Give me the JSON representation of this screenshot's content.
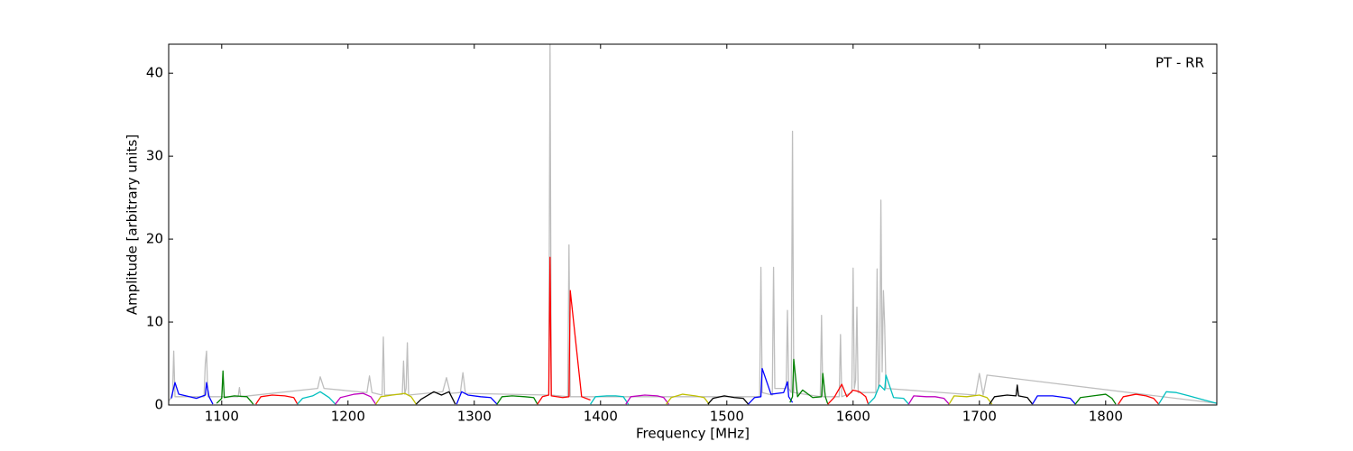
{
  "chart_data": {
    "type": "line",
    "annotation": "PT - RR",
    "xlabel": "Frequency [MHz]",
    "ylabel": "Amplitude [arbitrary units]",
    "xlim": [
      1058,
      1888
    ],
    "xticks": [
      1100,
      1200,
      1300,
      1400,
      1500,
      1600,
      1700,
      1800
    ],
    "ylim": [
      0,
      43.5
    ],
    "yticks": [
      0,
      10,
      20,
      30,
      40
    ],
    "series": [
      {
        "color": "#bebebe",
        "x": [
          1058,
          1061,
          1062,
          1063,
          1086,
          1087,
          1088,
          1089,
          1113,
          1114,
          1115,
          1176,
          1178,
          1181,
          1215,
          1217,
          1219,
          1227,
          1228,
          1229,
          1243,
          1244,
          1245,
          1246,
          1247,
          1248,
          1275,
          1278,
          1281,
          1289,
          1291,
          1293,
          1359,
          1360,
          1361,
          1374,
          1375,
          1376,
          1526,
          1527,
          1528,
          1536,
          1537,
          1538,
          1547,
          1548,
          1549,
          1551,
          1552,
          1553,
          1574,
          1575,
          1576,
          1589,
          1590,
          1591,
          1599,
          1600,
          1601,
          1602,
          1603,
          1604,
          1618,
          1619,
          1620,
          1621,
          1622,
          1623,
          1624,
          1625,
          1626,
          1697,
          1700,
          1703,
          1706,
          1888
        ],
        "values": [
          0.5,
          1,
          6.5,
          1,
          1,
          5,
          6.5,
          1,
          1,
          2.1,
          1,
          2,
          3.4,
          2,
          1.5,
          3.5,
          1.5,
          1.2,
          8.2,
          1.2,
          1.3,
          5.3,
          1.3,
          2,
          7.5,
          1.2,
          1.6,
          3.3,
          1.4,
          1.5,
          3.9,
          1.4,
          1.2,
          43.5,
          1.2,
          1,
          19.3,
          1,
          1,
          16.6,
          1.5,
          1.2,
          16.6,
          2,
          2,
          11.4,
          2,
          1.5,
          33,
          1.5,
          1,
          10.8,
          1,
          1,
          8.5,
          1,
          1.5,
          16.5,
          2,
          3,
          11.8,
          1.5,
          1.5,
          16.4,
          2,
          3,
          24.7,
          4,
          13.8,
          9.6,
          2,
          1.2,
          3.8,
          1.2,
          3.6,
          0.2
        ]
      },
      {
        "color": "#0000ff",
        "x": [
          1060,
          1063,
          1066,
          1080,
          1087,
          1088,
          1090,
          1093
        ],
        "values": [
          0.8,
          2.7,
          1.3,
          0.8,
          1.2,
          2.7,
          1,
          0.1
        ]
      },
      {
        "color": "#008000",
        "x": [
          1096,
          1100,
          1101,
          1102,
          1110,
          1120,
          1125
        ],
        "values": [
          0.2,
          0.8,
          4.1,
          0.9,
          1.1,
          1,
          0.1
        ]
      },
      {
        "color": "#ff0000",
        "x": [
          1127,
          1131,
          1140,
          1150,
          1157,
          1160
        ],
        "values": [
          0.1,
          1,
          1.2,
          1.1,
          0.9,
          0.1
        ]
      },
      {
        "color": "#00bfbf",
        "x": [
          1160,
          1164,
          1172,
          1178,
          1185,
          1190
        ],
        "values": [
          0.1,
          0.8,
          1.1,
          1.6,
          0.9,
          0.1
        ]
      },
      {
        "color": "#bf00bf",
        "x": [
          1190,
          1194,
          1205,
          1212,
          1218,
          1222
        ],
        "values": [
          0.1,
          0.9,
          1.3,
          1.4,
          1,
          0.1
        ]
      },
      {
        "color": "#bfbf00",
        "x": [
          1222,
          1226,
          1235,
          1245,
          1250,
          1254
        ],
        "values": [
          0.1,
          1,
          1.2,
          1.4,
          1,
          0.1
        ]
      },
      {
        "color": "#000000",
        "x": [
          1254,
          1258,
          1268,
          1274,
          1280,
          1285
        ],
        "values": [
          0.1,
          0.7,
          1.6,
          1.2,
          1.6,
          0.1
        ]
      },
      {
        "color": "#0000ff",
        "x": [
          1286,
          1290,
          1295,
          1305,
          1313,
          1318
        ],
        "values": [
          0.1,
          1.6,
          1.2,
          1,
          0.9,
          0.1
        ]
      },
      {
        "color": "#008000",
        "x": [
          1318,
          1322,
          1330,
          1340,
          1347,
          1350
        ],
        "values": [
          0.1,
          1,
          1.1,
          1,
          0.9,
          0.1
        ]
      },
      {
        "color": "#ff0000",
        "x": [
          1350,
          1354,
          1359,
          1360,
          1361,
          1370,
          1375,
          1376,
          1385,
          1392
        ],
        "values": [
          0.1,
          1,
          1.2,
          17.8,
          1.1,
          0.9,
          1,
          13.8,
          1,
          0.6
        ]
      },
      {
        "color": "#00bfbf",
        "x": [
          1392,
          1396,
          1405,
          1412,
          1418,
          1422
        ],
        "values": [
          0.1,
          1,
          1.1,
          1.1,
          1,
          0.1
        ]
      },
      {
        "color": "#bf00bf",
        "x": [
          1420,
          1424,
          1435,
          1445,
          1450,
          1454
        ],
        "values": [
          0.1,
          1,
          1.2,
          1.1,
          0.9,
          0.1
        ]
      },
      {
        "color": "#bfbf00",
        "x": [
          1452,
          1456,
          1465,
          1475,
          1482,
          1486
        ],
        "values": [
          0.1,
          0.9,
          1.3,
          1.1,
          0.9,
          0.1
        ]
      },
      {
        "color": "#000000",
        "x": [
          1485,
          1489,
          1498,
          1506,
          1513,
          1517
        ],
        "values": [
          0.1,
          0.8,
          1.1,
          0.9,
          0.8,
          0.1
        ]
      },
      {
        "color": "#0000ff",
        "x": [
          1517,
          1522,
          1527,
          1528,
          1535,
          1545,
          1548,
          1549,
          1552
        ],
        "values": [
          0.1,
          0.9,
          1,
          4.4,
          1.3,
          1.5,
          2.8,
          1,
          0.3
        ]
      },
      {
        "color": "#008000",
        "x": [
          1550,
          1552,
          1553,
          1556,
          1560,
          1568,
          1575,
          1576,
          1578,
          1580
        ],
        "values": [
          0.3,
          1,
          5.5,
          1,
          1.8,
          0.9,
          1,
          3.8,
          1,
          0.1
        ]
      },
      {
        "color": "#ff0000",
        "x": [
          1580,
          1585,
          1591,
          1595,
          1600,
          1605,
          1610,
          1612
        ],
        "values": [
          0.1,
          0.9,
          2.5,
          1,
          1.8,
          1.6,
          1,
          0.1
        ]
      },
      {
        "color": "#00bfbf",
        "x": [
          1612,
          1617,
          1621,
          1625,
          1626,
          1632,
          1640,
          1644
        ],
        "values": [
          0.1,
          0.9,
          2.4,
          1.8,
          3.6,
          0.9,
          0.8,
          0.1
        ]
      },
      {
        "color": "#bf00bf",
        "x": [
          1644,
          1648,
          1658,
          1665,
          1672,
          1676
        ],
        "values": [
          0.1,
          1.1,
          1,
          1,
          0.8,
          0.1
        ]
      },
      {
        "color": "#bfbf00",
        "x": [
          1676,
          1680,
          1690,
          1700,
          1706,
          1710
        ],
        "values": [
          0.1,
          1.1,
          1,
          1.2,
          0.9,
          0.1
        ]
      },
      {
        "color": "#000000",
        "x": [
          1708,
          1712,
          1722,
          1729,
          1730,
          1731,
          1738,
          1742
        ],
        "values": [
          0.1,
          1,
          1.2,
          1.1,
          2.4,
          1.1,
          0.9,
          0.1
        ]
      },
      {
        "color": "#0000ff",
        "x": [
          1742,
          1746,
          1758,
          1768,
          1772,
          1776
        ],
        "values": [
          0.1,
          1.1,
          1.1,
          0.9,
          0.8,
          0.1
        ]
      },
      {
        "color": "#008000",
        "x": [
          1776,
          1780,
          1790,
          1800,
          1805,
          1808
        ],
        "values": [
          0.1,
          0.9,
          1.1,
          1.3,
          0.8,
          0.1
        ]
      },
      {
        "color": "#ff0000",
        "x": [
          1810,
          1814,
          1824,
          1832,
          1838,
          1842
        ],
        "values": [
          0.1,
          1,
          1.3,
          1.1,
          0.8,
          0.1
        ]
      },
      {
        "color": "#00bfbf",
        "x": [
          1842,
          1848,
          1856,
          1866,
          1878,
          1888
        ],
        "values": [
          0.1,
          1.6,
          1.5,
          1.1,
          0.6,
          0.2
        ]
      }
    ]
  }
}
